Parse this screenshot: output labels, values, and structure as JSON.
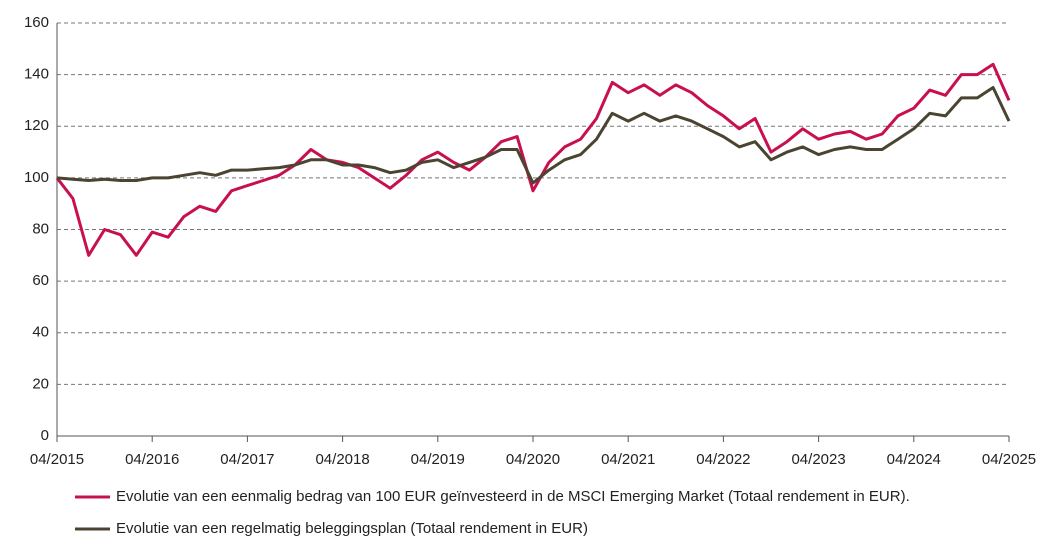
{
  "chart_data": {
    "type": "line",
    "categories": [
      "04/2015",
      null,
      null,
      null,
      null,
      null,
      "04/2016",
      null,
      null,
      null,
      null,
      null,
      "04/2017",
      null,
      null,
      null,
      null,
      null,
      "04/2018",
      null,
      null,
      null,
      null,
      null,
      "04/2019",
      null,
      null,
      null,
      null,
      null,
      "04/2020",
      null,
      null,
      null,
      null,
      null,
      "04/2021",
      null,
      null,
      null,
      null,
      null,
      "04/2022",
      null,
      null,
      null,
      null,
      null,
      "04/2023",
      null,
      null,
      null,
      null,
      null,
      "04/2024",
      null,
      null,
      null,
      null,
      null,
      "04/2025"
    ],
    "series": [
      {
        "name": "Evolutie van een eenmalig bedrag van 100 EUR geïnvesteerd in de MSCI Emerging Market (Totaal rendement in EUR).",
        "color": "#c8104e",
        "values": [
          100,
          92,
          70,
          80,
          78,
          70,
          79,
          77,
          85,
          89,
          87,
          95,
          97,
          99,
          101,
          105,
          111,
          107,
          106,
          104,
          100,
          96,
          101,
          107,
          110,
          106,
          103,
          108,
          114,
          116,
          95,
          106,
          112,
          115,
          123,
          137,
          133,
          136,
          132,
          136,
          133,
          128,
          124,
          119,
          123,
          110,
          114,
          119,
          115,
          117,
          118,
          115,
          117,
          124,
          127,
          134,
          132,
          140,
          140,
          144,
          130
        ]
      },
      {
        "name": "Evolutie van een regelmatig beleggingsplan (Totaal rendement in EUR)",
        "color": "#4a4430",
        "values": [
          100,
          99.5,
          99,
          99.5,
          99,
          99,
          100,
          100,
          101,
          102,
          101,
          103,
          103,
          103.5,
          104,
          105,
          107,
          107,
          105,
          105,
          104,
          102,
          103,
          106,
          107,
          104,
          106,
          108,
          111,
          111,
          98,
          103,
          107,
          109,
          115,
          125,
          122,
          125,
          122,
          124,
          122,
          119,
          116,
          112,
          114,
          107,
          110,
          112,
          109,
          111,
          112,
          111,
          111,
          115,
          119,
          125,
          124,
          131,
          131,
          135,
          122
        ]
      }
    ],
    "ylim": [
      0,
      160
    ],
    "yticks": [
      0,
      20,
      40,
      60,
      80,
      100,
      120,
      140,
      160
    ],
    "grid": true
  }
}
